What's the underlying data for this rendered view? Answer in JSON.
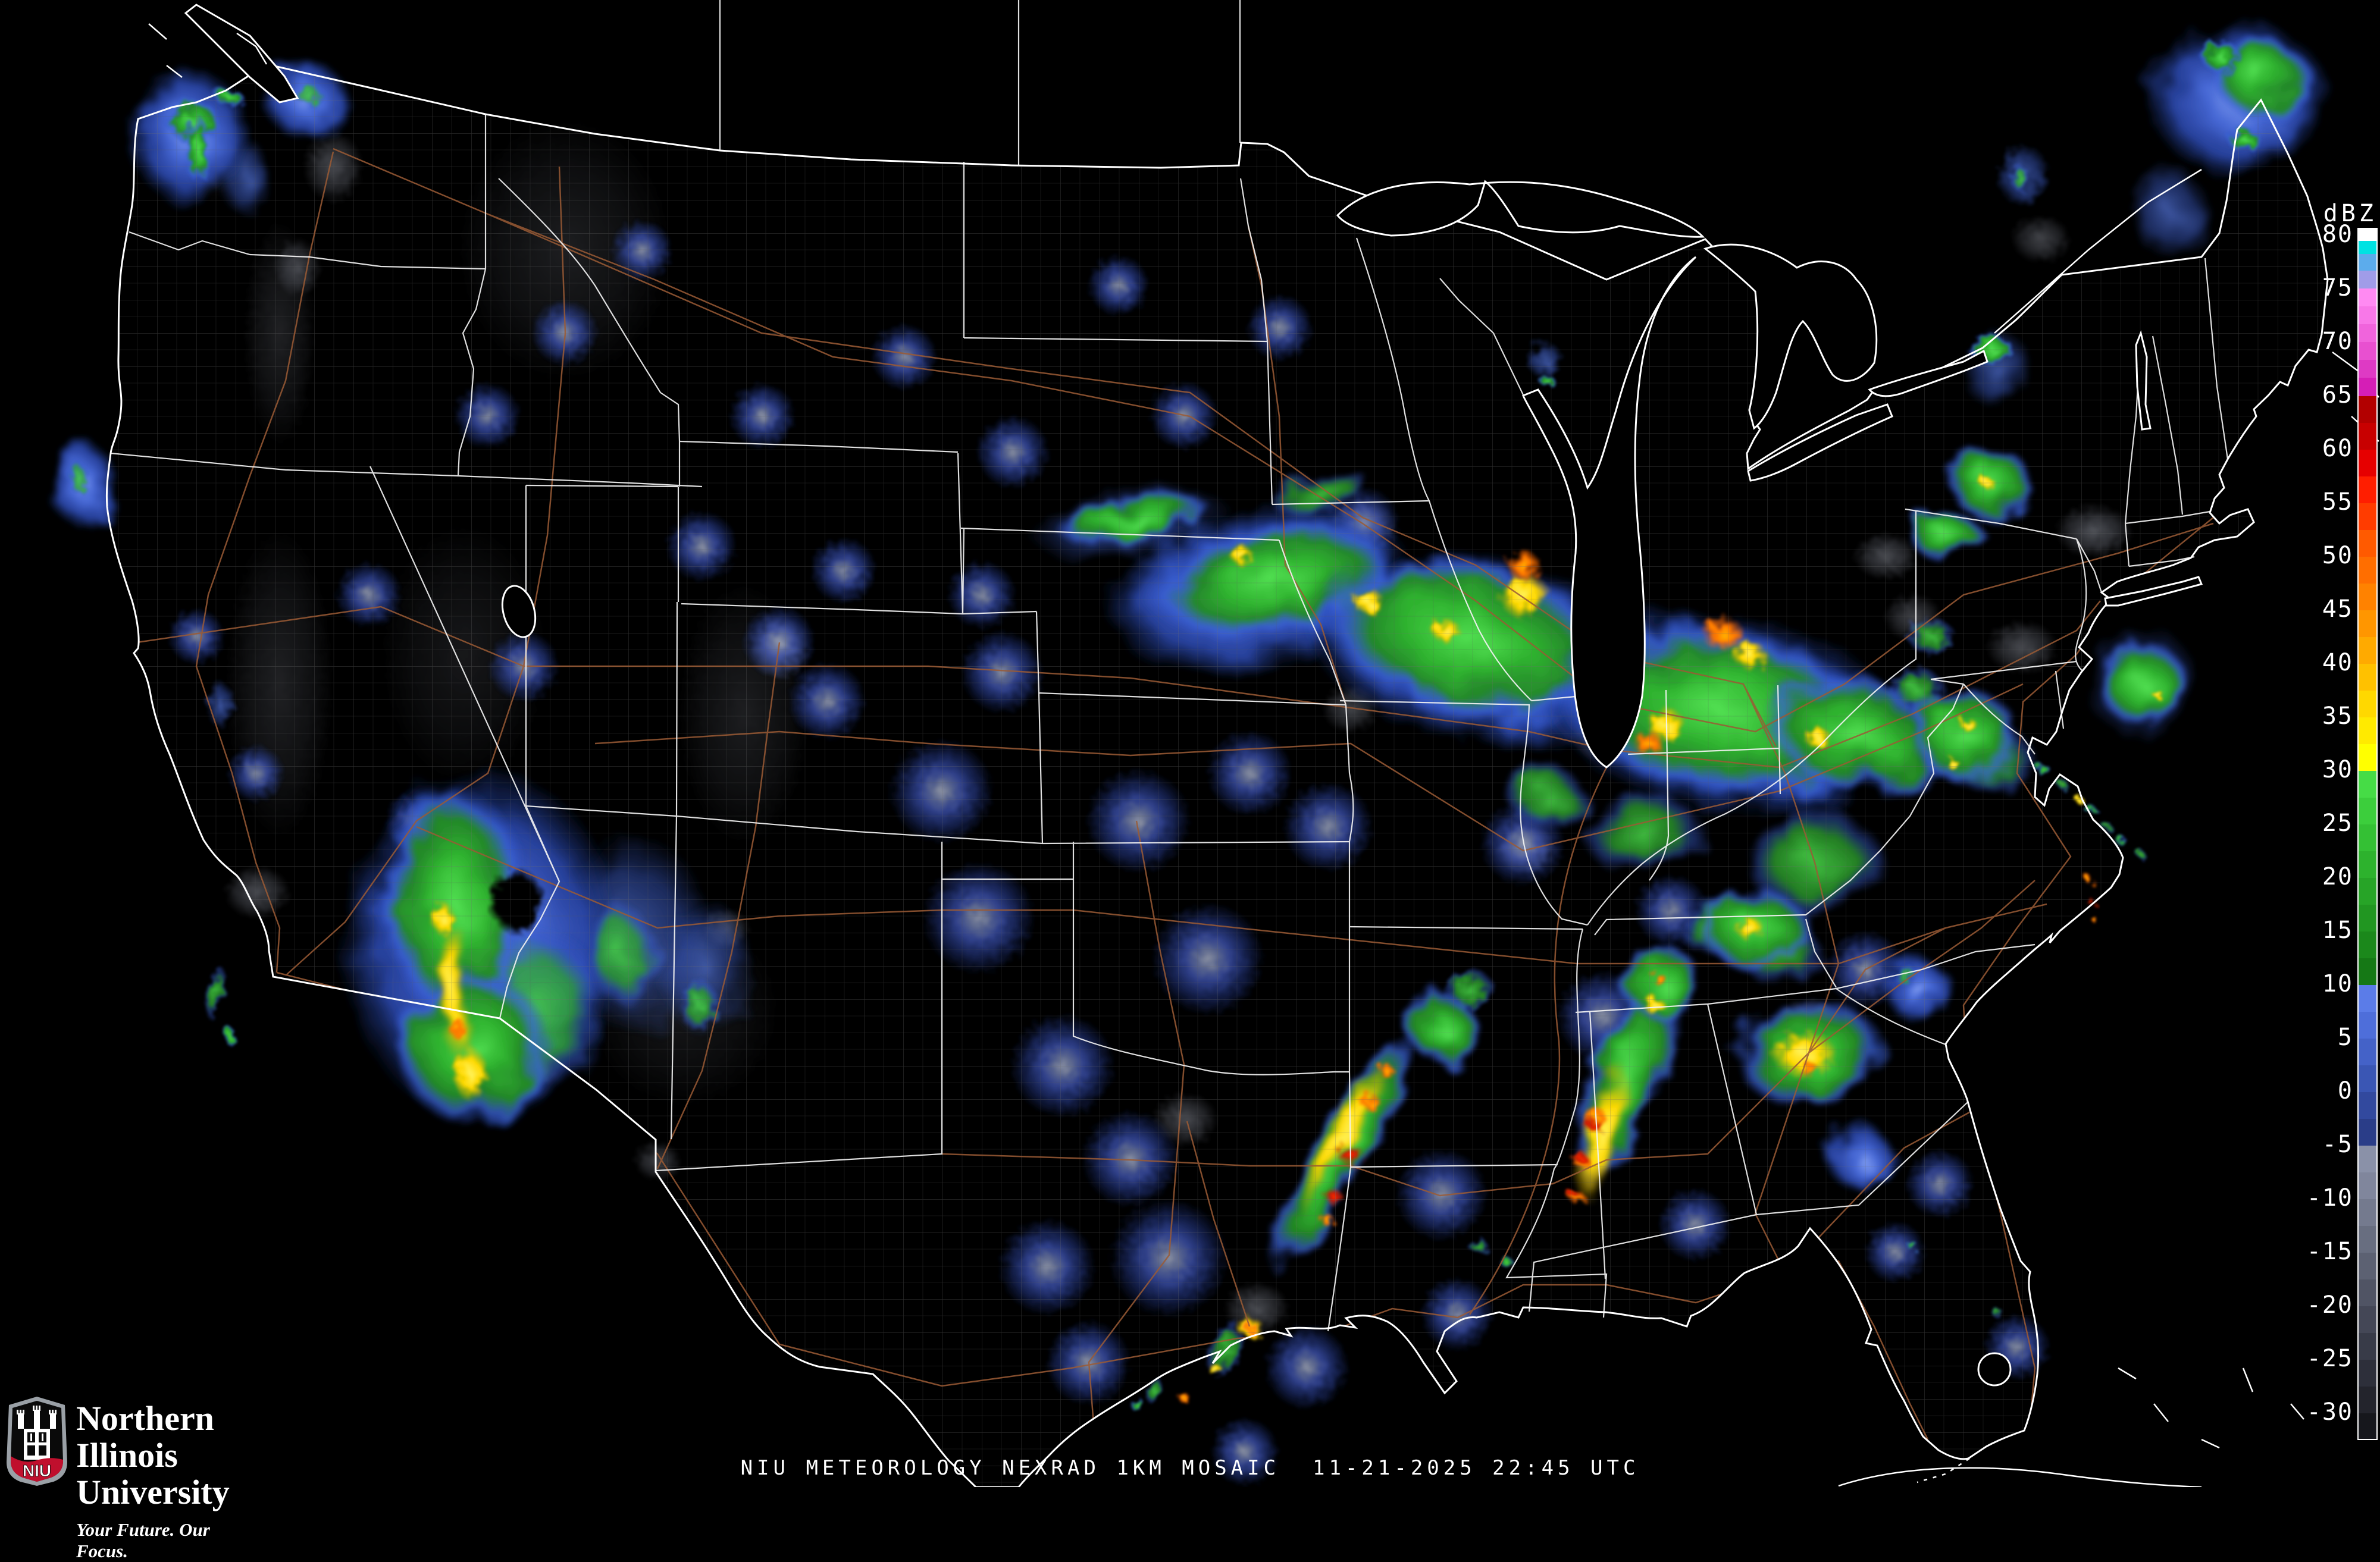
{
  "caption": {
    "product": "NIU METEOROLOGY NEXRAD 1KM MOSAIC",
    "timestamp": "11-21-2025 22:45 UTC"
  },
  "branding": {
    "acronym": "NIU",
    "university": "Northern Illinois University",
    "tagline": "Your Future. Our Focus.",
    "shield_red": "#C00F2D",
    "shield_gray": "#9aa0a6"
  },
  "colorbar": {
    "unit": "dBZ",
    "ticks": [
      "80",
      "75",
      "70",
      "65",
      "60",
      "55",
      "50",
      "45",
      "40",
      "35",
      "30",
      "25",
      "20",
      "15",
      "10",
      "5",
      "0",
      "-5",
      "-10",
      "-15",
      "-20",
      "-25",
      "-30"
    ],
    "tick_top_y": 394,
    "tick_spacing": 90,
    "segments": [
      {
        "h": 20,
        "c": "#FFFFFF"
      },
      {
        "h": 22,
        "c": "#00E2E2"
      },
      {
        "h": 28,
        "c": "#5CACEC"
      },
      {
        "h": 30,
        "c": "#A09CE8"
      },
      {
        "h": 30,
        "c": "#FF8AF2"
      },
      {
        "h": 30,
        "c": "#F878E8"
      },
      {
        "h": 30,
        "c": "#F064DC"
      },
      {
        "h": 30,
        "c": "#E850D0"
      },
      {
        "h": 30,
        "c": "#DE3AC4"
      },
      {
        "h": 31,
        "c": "#D51EB6"
      },
      {
        "h": 45,
        "c": "#B20000"
      },
      {
        "h": 45,
        "c": "#C80000"
      },
      {
        "h": 45,
        "c": "#E60000"
      },
      {
        "h": 45,
        "c": "#FF1E00"
      },
      {
        "h": 45,
        "c": "#FF3C00"
      },
      {
        "h": 45,
        "c": "#FF5A00"
      },
      {
        "h": 45,
        "c": "#FF6E00"
      },
      {
        "h": 45,
        "c": "#FF8200"
      },
      {
        "h": 45,
        "c": "#FF9600"
      },
      {
        "h": 45,
        "c": "#FFAA00"
      },
      {
        "h": 45,
        "c": "#FFC100"
      },
      {
        "h": 45,
        "c": "#FFD800"
      },
      {
        "h": 45,
        "c": "#FFEA00"
      },
      {
        "h": 45,
        "c": "#FFFF00"
      },
      {
        "h": 45,
        "c": "#46DC46"
      },
      {
        "h": 45,
        "c": "#3CCE3C"
      },
      {
        "h": 45,
        "c": "#34C034"
      },
      {
        "h": 45,
        "c": "#2DB22D"
      },
      {
        "h": 45,
        "c": "#27A427"
      },
      {
        "h": 45,
        "c": "#219621"
      },
      {
        "h": 45,
        "c": "#1B881B"
      },
      {
        "h": 45,
        "c": "#157815"
      },
      {
        "h": 45,
        "c": "#5B7CE8"
      },
      {
        "h": 45,
        "c": "#4E6EDA"
      },
      {
        "h": 45,
        "c": "#4462C8"
      },
      {
        "h": 45,
        "c": "#3A56B4"
      },
      {
        "h": 45,
        "c": "#32499E"
      },
      {
        "h": 45,
        "c": "#2A3D88"
      },
      {
        "h": 45,
        "c": "#8A91A8"
      },
      {
        "h": 45,
        "c": "#80869C"
      },
      {
        "h": 45,
        "c": "#747A8E"
      },
      {
        "h": 45,
        "c": "#686E80"
      },
      {
        "h": 45,
        "c": "#5C6172"
      },
      {
        "h": 45,
        "c": "#505464"
      },
      {
        "h": 45,
        "c": "#444756"
      },
      {
        "h": 45,
        "c": "#383B48"
      },
      {
        "h": 45,
        "c": "#2D2F3A"
      },
      {
        "h": 45,
        "c": "#23242C"
      },
      {
        "h": 43,
        "c": "#16171C"
      }
    ]
  },
  "map_colors": {
    "background": "#000000",
    "coast": "#FFFFFF",
    "state": "#F2F2F2",
    "county": "#6F6F6F",
    "road": "#9B5B35"
  },
  "radar_echoes": [
    [
      "blue",
      320,
      230,
      100,
      120,
      0
    ],
    [
      "green",
      325,
      205,
      48,
      38,
      0
    ],
    [
      "green",
      332,
      250,
      20,
      60,
      0
    ],
    [
      "green",
      385,
      162,
      30,
      16,
      20
    ],
    [
      "blue",
      515,
      168,
      80,
      60,
      0
    ],
    [
      "green-light",
      520,
      160,
      28,
      20,
      0
    ],
    [
      "blue-light",
      415,
      300,
      40,
      70,
      0
    ],
    [
      "blue",
      140,
      815,
      60,
      75,
      0
    ],
    [
      "green-light",
      132,
      805,
      18,
      30,
      0
    ],
    [
      "blue-light",
      370,
      1185,
      25,
      40,
      0
    ],
    [
      "green-light",
      362,
      1668,
      16,
      44,
      15
    ],
    [
      "green",
      386,
      1742,
      12,
      14,
      0
    ],
    [
      "blue",
      810,
      1590,
      240,
      300,
      0
    ],
    [
      "green",
      765,
      1520,
      125,
      200,
      0
    ],
    [
      "green",
      795,
      1762,
      135,
      130,
      0
    ],
    [
      "green-light",
      900,
      1700,
      120,
      150,
      0
    ],
    [
      "yellow",
      762,
      1662,
      26,
      115,
      0
    ],
    [
      "yellow",
      790,
      1805,
      30,
      48,
      0
    ],
    [
      "yellow",
      745,
      1545,
      22,
      30,
      0
    ],
    [
      "orange",
      770,
      1730,
      14,
      22,
      0
    ],
    [
      "hole",
      868,
      1515,
      48,
      58,
      0
    ],
    [
      "blue-light",
      1065,
      1570,
      130,
      170,
      0
    ],
    [
      "green-light",
      1045,
      1605,
      60,
      85,
      0
    ],
    [
      "blue-light",
      1185,
      1625,
      85,
      115,
      0
    ],
    [
      "green-light",
      1175,
      1690,
      35,
      45,
      0
    ],
    [
      "blue",
      2110,
      990,
      260,
      140,
      -12
    ],
    [
      "blue",
      2480,
      1090,
      300,
      160,
      12
    ],
    [
      "blue",
      2900,
      1200,
      320,
      170,
      10
    ],
    [
      "blue-light",
      1900,
      880,
      170,
      60,
      -8
    ],
    [
      "green",
      1905,
      872,
      135,
      40,
      -8
    ],
    [
      "green",
      2140,
      975,
      205,
      95,
      -12
    ],
    [
      "green",
      2470,
      1075,
      265,
      135,
      14
    ],
    [
      "green",
      2890,
      1195,
      285,
      145,
      10
    ],
    [
      "green",
      3120,
      1235,
      165,
      95,
      15
    ],
    [
      "green-light",
      3330,
      1270,
      90,
      60,
      0
    ],
    [
      "green-light",
      2220,
      830,
      90,
      35,
      -15
    ],
    [
      "yellow",
      2560,
      1000,
      45,
      40,
      0
    ],
    [
      "orange",
      2562,
      952,
      30,
      26,
      0
    ],
    [
      "yellow",
      2300,
      1012,
      28,
      24,
      0
    ],
    [
      "yellow",
      2085,
      932,
      20,
      18,
      0
    ],
    [
      "orange",
      2712,
      992,
      26,
      22,
      0
    ],
    [
      "orange",
      2895,
      1065,
      38,
      30,
      0
    ],
    [
      "yellow",
      2940,
      1100,
      30,
      26,
      0
    ],
    [
      "orange",
      2770,
      1250,
      28,
      24,
      0
    ],
    [
      "yellow",
      2800,
      1220,
      36,
      30,
      0
    ],
    [
      "yellow",
      3055,
      1240,
      24,
      20,
      0
    ],
    [
      "yellow",
      2430,
      1060,
      26,
      22,
      0
    ],
    [
      "green-light",
      2760,
      1400,
      105,
      75,
      0
    ],
    [
      "green",
      2950,
      1560,
      95,
      70,
      0
    ],
    [
      "yellow",
      2940,
      1560,
      26,
      20,
      0
    ],
    [
      "green-light",
      3050,
      1450,
      120,
      90,
      0
    ],
    [
      "green-light",
      2600,
      1340,
      70,
      50,
      0
    ],
    [
      "green",
      3345,
      812,
      75,
      62,
      0
    ],
    [
      "yellow",
      3340,
      812,
      14,
      12,
      0
    ],
    [
      "blue-light",
      3400,
      295,
      45,
      55,
      0
    ],
    [
      "green-light",
      3395,
      300,
      18,
      22,
      0
    ],
    [
      "green",
      3270,
      900,
      65,
      42,
      0
    ],
    [
      "green",
      3348,
      588,
      38,
      26,
      0
    ],
    [
      "blue-light",
      3355,
      620,
      60,
      70,
      0
    ],
    [
      "green-light",
      3246,
      1070,
      42,
      32,
      0
    ],
    [
      "green",
      3300,
      1235,
      95,
      82,
      0
    ],
    [
      "yellow",
      3308,
      1218,
      16,
      12,
      0
    ],
    [
      "yellow",
      3284,
      1286,
      12,
      10,
      0
    ],
    [
      "green-light",
      3220,
      1160,
      50,
      40,
      0
    ],
    [
      "blue-light",
      3600,
      1148,
      95,
      100,
      0
    ],
    [
      "green",
      3600,
      1148,
      72,
      78,
      0
    ],
    [
      "yellow",
      3629,
      1170,
      10,
      9,
      0
    ],
    [
      "green",
      3432,
      1292,
      12,
      10,
      0
    ],
    [
      "green-light",
      3466,
      1318,
      10,
      9,
      0
    ],
    [
      "yellow",
      3492,
      1342,
      8,
      7,
      0
    ],
    [
      "green",
      3514,
      1362,
      10,
      8,
      0
    ],
    [
      "green-light",
      3542,
      1390,
      9,
      8,
      0
    ],
    [
      "green",
      3566,
      1414,
      9,
      8,
      0
    ],
    [
      "green-light",
      3600,
      1438,
      8,
      7,
      0
    ],
    [
      "orange",
      3512,
      1480,
      8,
      7,
      0
    ],
    [
      "red",
      3514,
      1516,
      7,
      6,
      0
    ],
    [
      "orange",
      3522,
      1548,
      6,
      5,
      0
    ],
    [
      "blue",
      3762,
      165,
      155,
      135,
      0
    ],
    [
      "green",
      3802,
      132,
      85,
      70,
      0
    ],
    [
      "green",
      3732,
      95,
      35,
      28,
      0
    ],
    [
      "green",
      3772,
      235,
      28,
      22,
      0
    ],
    [
      "blue-light",
      3645,
      355,
      65,
      85,
      0
    ],
    [
      "green",
      2732,
      1815,
      65,
      185,
      20
    ],
    [
      "yellow",
      2692,
      1902,
      30,
      120,
      18
    ],
    [
      "red",
      2678,
      1892,
      16,
      14,
      0
    ],
    [
      "red",
      2654,
      1944,
      13,
      11,
      0
    ],
    [
      "red",
      2644,
      2008,
      11,
      10,
      0
    ],
    [
      "orange",
      2682,
      1878,
      22,
      18,
      0
    ],
    [
      "orange",
      2657,
      1952,
      17,
      14,
      0
    ],
    [
      "orange",
      2650,
      2012,
      15,
      12,
      0
    ],
    [
      "green",
      2792,
      1652,
      75,
      62,
      0
    ],
    [
      "orange",
      2788,
      1645,
      13,
      11,
      0
    ],
    [
      "yellow",
      2780,
      1690,
      20,
      16,
      0
    ],
    [
      "green",
      3042,
      1772,
      135,
      92,
      0
    ],
    [
      "yellow",
      3032,
      1772,
      58,
      40,
      0
    ],
    [
      "orange",
      3042,
      1798,
      17,
      14,
      0
    ],
    [
      "green-light",
      2992,
      1602,
      72,
      56,
      0
    ],
    [
      "green-light",
      2880,
      1560,
      62,
      50,
      0
    ],
    [
      "blue",
      3222,
      1662,
      62,
      56,
      0
    ],
    [
      "green-light",
      3202,
      1640,
      22,
      18,
      0
    ],
    [
      "blue",
      3122,
      1942,
      62,
      56,
      0
    ],
    [
      "green",
      2255,
      1935,
      50,
      235,
      30
    ],
    [
      "yellow",
      2258,
      1905,
      26,
      145,
      30
    ],
    [
      "red",
      2270,
      1942,
      24,
      20,
      0
    ],
    [
      "red",
      2242,
      2012,
      17,
      14,
      0
    ],
    [
      "orange",
      2302,
      1852,
      19,
      16,
      0
    ],
    [
      "orange",
      2332,
      1802,
      15,
      12,
      0
    ],
    [
      "orange",
      2232,
      2052,
      13,
      11,
      0
    ],
    [
      "green",
      2420,
      1725,
      55,
      65,
      0
    ],
    [
      "green-light",
      2470,
      1665,
      42,
      40,
      0
    ],
    [
      "yellow",
      2100,
      2232,
      24,
      20,
      0
    ],
    [
      "orange",
      2102,
      2232,
      15,
      12,
      0
    ],
    [
      "yellow",
      2042,
      2302,
      13,
      11,
      0
    ],
    [
      "orange",
      1992,
      2352,
      11,
      9,
      0
    ],
    [
      "green-light",
      2060,
      2270,
      30,
      50,
      25
    ],
    [
      "green-light",
      2484,
      2094,
      18,
      14,
      0
    ],
    [
      "green",
      2532,
      2122,
      11,
      9,
      0
    ],
    [
      "blue-light",
      2596,
      605,
      32,
      32,
      0
    ],
    [
      "green",
      2602,
      642,
      13,
      11,
      0
    ],
    [
      "green-light",
      1940,
      2338,
      14,
      24,
      15
    ],
    [
      "green",
      1910,
      2360,
      10,
      14,
      0
    ],
    [
      "green",
      3212,
      2092,
      9,
      8,
      0
    ],
    [
      "green-light",
      3360,
      2210,
      10,
      9,
      0
    ]
  ],
  "clutter_sites": [
    [
      1645,
      1543,
      95
    ],
    [
      2030,
      1612,
      95
    ],
    [
      1786,
      1792,
      88
    ],
    [
      1900,
      1948,
      82
    ],
    [
      1760,
      2130,
      82
    ],
    [
      1964,
      2115,
      100
    ],
    [
      2196,
      2298,
      72
    ],
    [
      2423,
      2008,
      78
    ],
    [
      1582,
      1330,
      88
    ],
    [
      1913,
      1380,
      88
    ],
    [
      2100,
      1300,
      72
    ],
    [
      2232,
      1390,
      76
    ],
    [
      1684,
      1130,
      70
    ],
    [
      1390,
      1179,
      66
    ],
    [
      1309,
      1079,
      62
    ],
    [
      1179,
      918,
      60
    ],
    [
      1418,
      959,
      56
    ],
    [
      1650,
      1000,
      58
    ],
    [
      2559,
      1418,
      72
    ],
    [
      2694,
      1709,
      78
    ],
    [
      2809,
      1531,
      62
    ],
    [
      3135,
      1630,
      66
    ],
    [
      2449,
      2209,
      62
    ],
    [
      2849,
      2059,
      62
    ],
    [
      3260,
      1990,
      58
    ],
    [
      3185,
      2105,
      52
    ],
    [
      3390,
      2265,
      56
    ],
    [
      1829,
      2291,
      72
    ],
    [
      2092,
      2441,
      58
    ],
    [
      1702,
      760,
      62
    ],
    [
      1990,
      699,
      58
    ],
    [
      1520,
      600,
      56
    ],
    [
      1880,
      480,
      52
    ],
    [
      2151,
      551,
      56
    ],
    [
      2291,
      880,
      62
    ],
    [
      1281,
      699,
      56
    ],
    [
      949,
      559,
      56
    ],
    [
      1079,
      421,
      52
    ],
    [
      819,
      699,
      56
    ],
    [
      620,
      1000,
      56
    ],
    [
      880,
      1120,
      60
    ],
    [
      699,
      1380,
      52
    ],
    [
      330,
      1070,
      48
    ],
    [
      430,
      1300,
      48
    ]
  ],
  "gray_speckle": [
    [
      560,
      280,
      50,
      60,
      0.5
    ],
    [
      500,
      450,
      40,
      50,
      0.45
    ],
    [
      1310,
      1090,
      50,
      55,
      0.5
    ],
    [
      2290,
      885,
      55,
      45,
      0.5
    ],
    [
      2700,
      1235,
      60,
      50,
      0.55
    ],
    [
      2935,
      1145,
      60,
      45,
      0.55
    ],
    [
      3170,
      935,
      55,
      40,
      0.5
    ],
    [
      3520,
      893,
      65,
      45,
      0.55
    ],
    [
      3398,
      1088,
      60,
      45,
      0.5
    ],
    [
      3215,
      1038,
      50,
      40,
      0.45
    ],
    [
      2565,
      1428,
      50,
      40,
      0.5
    ],
    [
      2270,
      1192,
      48,
      40,
      0.45
    ],
    [
      1992,
      1882,
      55,
      45,
      0.5
    ],
    [
      2112,
      2200,
      55,
      45,
      0.5
    ],
    [
      432,
      1500,
      55,
      45,
      0.5
    ],
    [
      3042,
      1722,
      55,
      45,
      0.5
    ],
    [
      1105,
      1952,
      40,
      32,
      0.45
    ],
    [
      3430,
      402,
      50,
      40,
      0.45
    ],
    [
      1220,
      1560,
      40,
      34,
      0.45
    ],
    [
      902,
      1792,
      40,
      34,
      0.45
    ],
    [
      470,
      1150,
      90,
      260,
      0.22
    ],
    [
      470,
      560,
      60,
      190,
      0.22
    ],
    [
      950,
      420,
      180,
      220,
      0.2
    ],
    [
      1250,
      1200,
      110,
      220,
      0.2
    ],
    [
      780,
      1100,
      140,
      220,
      0.16
    ],
    [
      1150,
      1700,
      160,
      160,
      0.16
    ],
    [
      350,
      250,
      60,
      90,
      0.2
    ]
  ]
}
